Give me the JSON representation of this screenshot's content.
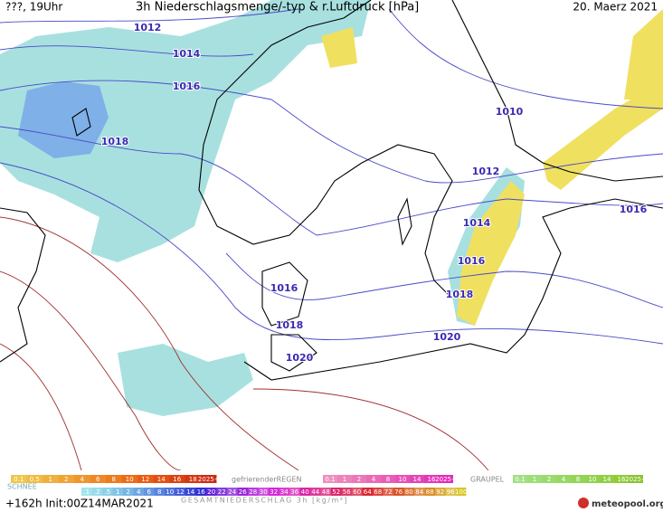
{
  "header": {
    "left": "???, 19Uhr",
    "title": "3h Niederschlagsmenge/-typ & r.Luftdruck [hPa]",
    "date": "20. Maerz 2021"
  },
  "isobars": [
    1012,
    1014,
    1016,
    1018,
    1010,
    1012,
    1014,
    1016,
    1018,
    1020,
    1016,
    1018,
    1020,
    1016
  ],
  "legend": {
    "rain": [
      "0.1",
      "0.5",
      "1",
      "2",
      "4",
      "6",
      "8",
      "10",
      "12",
      "14",
      "16",
      "18",
      "2025+"
    ],
    "freezing_rain": {
      "title": "gefrierenderREGEN",
      "steps": [
        "0.1",
        "1",
        "2",
        "4",
        "8",
        "10",
        "14",
        "16",
        "2025+"
      ]
    },
    "graupel": {
      "title": "GRAUPEL",
      "steps": [
        "0.1",
        "1",
        "2",
        "4",
        "8",
        "10",
        "14",
        "16",
        "2025+"
      ]
    },
    "snow": {
      "title": "SCHNEE",
      "steps": [
        ".1",
        ".2",
        ".5",
        "1",
        "2",
        "4",
        "6",
        "8",
        "10",
        "12",
        "14",
        "16"
      ]
    },
    "total": {
      "title": "GESAMTNIEDERSCHLAG 3h [kg/m²]",
      "steps": [
        "20",
        "22",
        "24",
        "26",
        "28",
        "30",
        "32",
        "34",
        "36",
        "40",
        "44",
        "48",
        "52",
        "56",
        "60",
        "64",
        "68",
        "72",
        "76",
        "80",
        "84",
        "88",
        "92",
        "96",
        "100"
      ]
    }
  },
  "footer": {
    "run": "+162h Init:00Z14MAR2021",
    "brand": "meteopool.org"
  }
}
